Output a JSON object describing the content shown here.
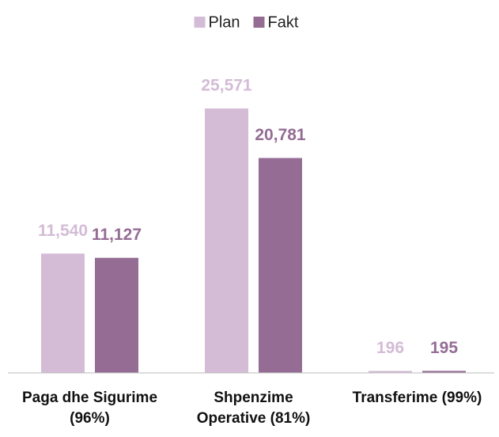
{
  "chart_data": {
    "type": "bar",
    "categories": [
      "Paga dhe Sigurime\n(96%)",
      "Shpenzime\nOperative (81%)",
      "Transferime (99%)"
    ],
    "series": [
      {
        "name": "Plan",
        "color": "#d4bcd6",
        "values": [
          11540,
          25571,
          196
        ],
        "value_labels": [
          "11,540",
          "25,571",
          "196"
        ]
      },
      {
        "name": "Fakt",
        "color": "#946c94",
        "values": [
          11127,
          20781,
          195
        ],
        "value_labels": [
          "11,127",
          "20,781",
          "195"
        ]
      }
    ],
    "legend": "top"
  }
}
